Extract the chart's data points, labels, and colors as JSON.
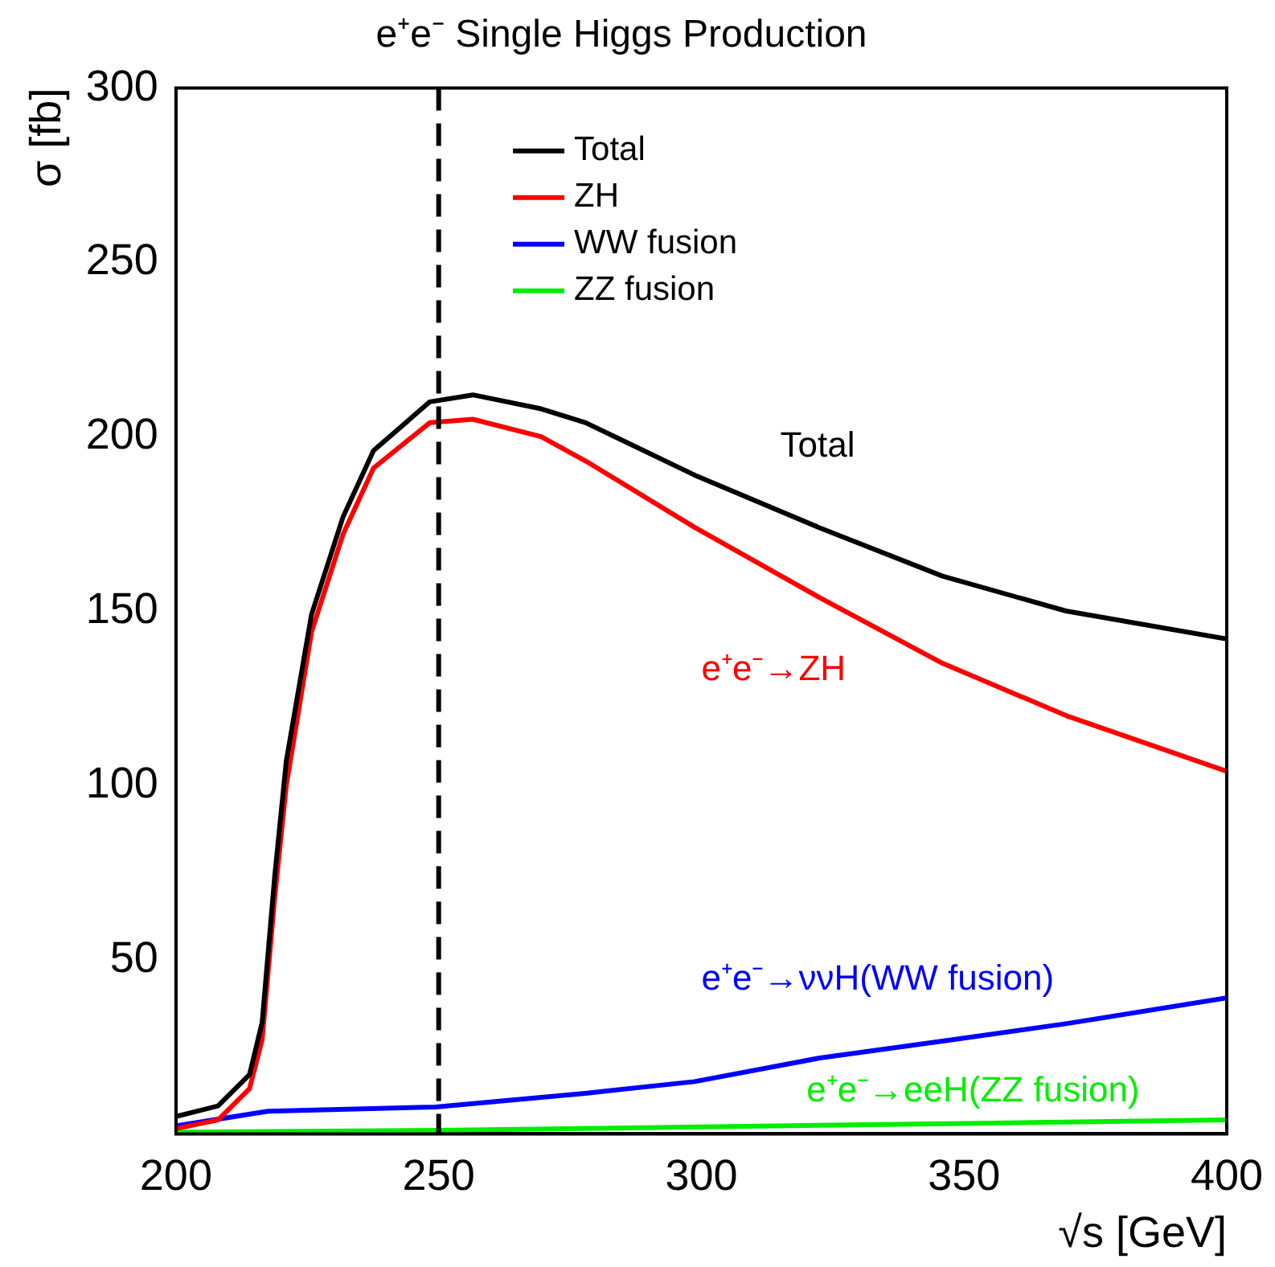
{
  "chart_data": {
    "type": "line",
    "title": "e⁺e⁻ Single Higgs Production",
    "xlabel": "√s [GeV]",
    "ylabel": "σ [fb]",
    "xlim": [
      200,
      400
    ],
    "xticks": [
      200,
      250,
      300,
      350,
      400
    ],
    "ylim": [
      0,
      300
    ],
    "yticks": [
      50,
      100,
      150,
      200,
      250,
      300
    ],
    "grid": false,
    "legend": "top",
    "marker": "none",
    "line_style": "solid",
    "series": [
      {
        "name": "Total",
        "color": "#000000",
        "x": [
          200,
          208,
          214,
          216.4,
          218.8,
          221,
          225.8,
          231.8,
          237.6,
          248.3,
          256.5,
          269.5,
          278,
          298.7,
          322.3,
          345.9,
          369.4,
          400
        ],
        "values": [
          5,
          8,
          17,
          32,
          74,
          107,
          149,
          177,
          196,
          210,
          212,
          208,
          204,
          189,
          174,
          160,
          150,
          142
        ]
      },
      {
        "name": "ZH",
        "color": "#ff0000",
        "x": [
          200,
          208,
          214,
          216.4,
          218.8,
          221,
          225.8,
          231.8,
          237.6,
          248.3,
          256.5,
          269.5,
          278,
          298.7,
          322.3,
          345.9,
          369.4,
          400
        ],
        "values": [
          1.5,
          4,
          13,
          27,
          68,
          100,
          144,
          172,
          191,
          204,
          205,
          200,
          193,
          174,
          154,
          135,
          120,
          104
        ]
      },
      {
        "name": "WW fusion",
        "color": "#0000ff",
        "x": [
          200,
          217.5,
          249.4,
          278.3,
          298.7,
          322.3,
          345.9,
          369.4,
          400
        ],
        "values": [
          2.3,
          6.5,
          7.7,
          11.7,
          15,
          21.7,
          26.6,
          31.6,
          39
        ]
      },
      {
        "name": "ZZ fusion",
        "color": "#00ee00",
        "x": [
          200,
          250,
          300,
          350,
          400
        ],
        "values": [
          0.5,
          1,
          2,
          3,
          4
        ]
      }
    ],
    "ref_lines": [
      {
        "axis": "x",
        "value": 250,
        "color": "#000000",
        "line_style": "dashed"
      }
    ],
    "annotations": [
      "Total",
      "e⁺e⁻→ZH",
      "e⁺e⁻→ννH(WW fusion)",
      "e⁺e⁻→eeH(ZZ fusion)"
    ]
  }
}
